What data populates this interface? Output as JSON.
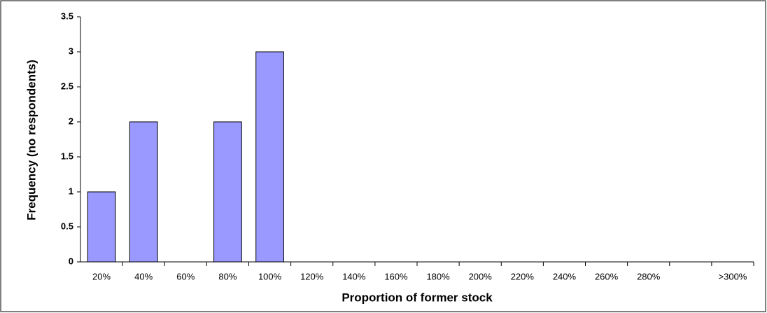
{
  "chart_data": {
    "type": "bar",
    "x_label": "Proportion of former stock",
    "y_label": "Frequency (no respondents)",
    "categories": [
      "20%",
      "40%",
      "60%",
      "80%",
      "100%",
      "120%",
      "140%",
      "160%",
      "180%",
      "200%",
      "220%",
      "240%",
      "260%",
      "280%",
      null,
      ">300%"
    ],
    "values": [
      1,
      2,
      0,
      2,
      3,
      0,
      0,
      0,
      0,
      0,
      0,
      0,
      0,
      0,
      0,
      0
    ],
    "color": "#9999ff",
    "ylim": [
      0,
      3.5
    ],
    "yticks": [
      0,
      0.5,
      1,
      1.5,
      2,
      2.5,
      3,
      3.5
    ],
    "grid": false
  }
}
